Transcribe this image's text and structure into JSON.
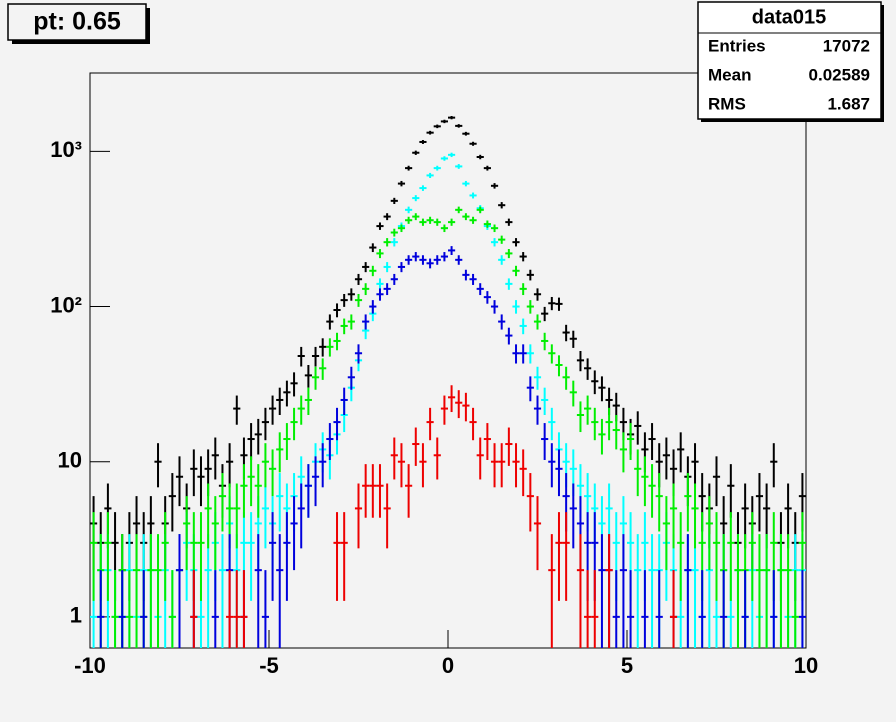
{
  "title_box": "pt: 0.65",
  "stats": {
    "title": "data015",
    "rows": [
      {
        "label": "Entries",
        "value": 17072
      },
      {
        "label": "Mean",
        "value": 0.02589
      },
      {
        "label": "RMS",
        "value": 1.687
      }
    ]
  },
  "chart_data": {
    "type": "errorbar",
    "log_y": true,
    "x": [
      -9.9,
      -9.7,
      -9.5,
      -9.3,
      -9.1,
      -8.9,
      -8.7,
      -8.5,
      -8.3,
      -8.1,
      -7.9,
      -7.7,
      -7.5,
      -7.3,
      -7.1,
      -6.9,
      -6.7,
      -6.5,
      -6.3,
      -6.1,
      -5.9,
      -5.7,
      -5.5,
      -5.3,
      -5.1,
      -4.9,
      -4.7,
      -4.5,
      -4.3,
      -4.1,
      -3.9,
      -3.7,
      -3.5,
      -3.3,
      -3.1,
      -2.9,
      -2.7,
      -2.5,
      -2.3,
      -2.1,
      -1.9,
      -1.7,
      -1.5,
      -1.3,
      -1.1,
      -0.9,
      -0.7,
      -0.5,
      -0.3,
      -0.1,
      0.1,
      0.3,
      0.5,
      0.7,
      0.9,
      1.1,
      1.3,
      1.5,
      1.7,
      1.9,
      2.1,
      2.3,
      2.5,
      2.7,
      2.9,
      3.1,
      3.3,
      3.5,
      3.7,
      3.9,
      4.1,
      4.3,
      4.5,
      4.7,
      4.9,
      5.1,
      5.3,
      5.5,
      5.7,
      5.9,
      6.1,
      6.3,
      6.5,
      6.7,
      6.9,
      7.1,
      7.3,
      7.5,
      7.7,
      7.9,
      8.1,
      8.3,
      8.5,
      8.7,
      8.9,
      9.1,
      9.3,
      9.5,
      9.7,
      9.9
    ],
    "xlim": [
      -10,
      10
    ],
    "xticks": [
      -10,
      -5,
      0,
      5,
      10
    ],
    "ylim": [
      0.63,
      3200
    ],
    "yticks": [
      1,
      10,
      {
        "value": 100,
        "label": "10²"
      },
      {
        "value": 1000,
        "label": "10³"
      }
    ],
    "series": [
      {
        "color": "#000000",
        "values": [
          4,
          3,
          5,
          3,
          2,
          3,
          4,
          3,
          4,
          10,
          4,
          6,
          8,
          5,
          9,
          8,
          9,
          11,
          7,
          10,
          22,
          11,
          14,
          15,
          18,
          22,
          25,
          28,
          32,
          48,
          36,
          48,
          55,
          80,
          95,
          110,
          120,
          150,
          180,
          240,
          330,
          380,
          480,
          620,
          780,
          980,
          1150,
          1320,
          1450,
          1560,
          1650,
          1460,
          1300,
          1120,
          920,
          780,
          600,
          450,
          350,
          260,
          210,
          160,
          120,
          90,
          105,
          104,
          68,
          62,
          45,
          40,
          33,
          30,
          25,
          23,
          18,
          15,
          17,
          12,
          14,
          10,
          11,
          9,
          12,
          8,
          10,
          6,
          5,
          8,
          4,
          7,
          3,
          5,
          4,
          6,
          5,
          10,
          3,
          5,
          3,
          6
        ]
      },
      {
        "color": "#00ffff",
        "values": [
          1,
          2,
          2,
          1,
          1,
          2,
          1,
          2,
          2,
          1,
          2,
          1,
          2,
          3,
          2,
          1,
          2,
          3,
          2,
          4,
          2,
          3,
          3,
          4,
          5,
          4,
          6,
          5,
          6,
          8,
          7,
          10,
          12,
          11,
          15,
          20,
          30,
          45,
          70,
          90,
          140,
          180,
          260,
          330,
          420,
          500,
          580,
          700,
          780,
          900,
          950,
          800,
          620,
          520,
          430,
          330,
          260,
          200,
          140,
          100,
          75,
          50,
          35,
          25,
          18,
          12,
          10,
          9,
          7,
          6,
          5,
          4,
          5,
          3,
          4,
          3,
          2,
          3,
          2,
          2,
          3,
          2,
          1,
          2,
          2,
          1,
          2,
          1,
          2,
          1,
          2,
          1,
          2,
          1,
          2,
          1,
          2,
          1,
          2,
          2
        ]
      },
      {
        "color": "#00ee00",
        "values": [
          3,
          2,
          3,
          1,
          2,
          1,
          2,
          1,
          2,
          2,
          3,
          1,
          2,
          4,
          3,
          3,
          5,
          4,
          6,
          5,
          5,
          7,
          8,
          7,
          10,
          9,
          12,
          14,
          18,
          22,
          25,
          35,
          40,
          55,
          60,
          75,
          80,
          110,
          130,
          170,
          220,
          260,
          300,
          320,
          360,
          380,
          350,
          360,
          350,
          320,
          350,
          420,
          380,
          360,
          420,
          340,
          320,
          270,
          220,
          170,
          130,
          100,
          80,
          60,
          50,
          42,
          35,
          28,
          20,
          22,
          18,
          15,
          18,
          16,
          12,
          14,
          9,
          8,
          7,
          6,
          4,
          5,
          3,
          6,
          5,
          3,
          4,
          3,
          2,
          3,
          2,
          2,
          3,
          2,
          2,
          3,
          2,
          2,
          1,
          3
        ]
      },
      {
        "color": "#0000dd",
        "values": [
          null,
          1,
          null,
          null,
          1,
          null,
          null,
          1,
          null,
          null,
          null,
          null,
          2,
          null,
          1,
          null,
          null,
          1,
          null,
          2,
          null,
          1,
          null,
          2,
          1,
          3,
          2,
          3,
          4,
          5,
          7,
          8,
          10,
          14,
          18,
          25,
          35,
          50,
          80,
          100,
          120,
          130,
          150,
          180,
          200,
          210,
          200,
          190,
          200,
          210,
          230,
          200,
          160,
          150,
          130,
          115,
          100,
          80,
          65,
          50,
          50,
          30,
          22,
          14,
          10,
          9,
          6,
          5,
          4,
          3,
          3,
          2,
          2,
          1,
          2,
          1,
          null,
          1,
          null,
          1,
          null,
          1,
          null,
          2,
          null,
          1,
          null,
          null,
          1,
          null,
          null,
          1,
          null,
          null,
          null,
          1,
          null,
          null,
          null,
          1
        ]
      },
      {
        "color": "#ee0000",
        "values": [
          null,
          null,
          null,
          null,
          null,
          null,
          null,
          null,
          null,
          null,
          null,
          null,
          null,
          null,
          1,
          null,
          null,
          null,
          null,
          1,
          1,
          1,
          null,
          null,
          null,
          null,
          null,
          null,
          null,
          null,
          null,
          null,
          null,
          null,
          3,
          3,
          null,
          5,
          7,
          7,
          7,
          5,
          11,
          10,
          7,
          13,
          10,
          18,
          11,
          22,
          26,
          24,
          23,
          18,
          11,
          14,
          10,
          10,
          13,
          10,
          9,
          6,
          4,
          null,
          2,
          3,
          3,
          null,
          2,
          1,
          1,
          null,
          2,
          null,
          null,
          null,
          null,
          null,
          null,
          null,
          null,
          1,
          null,
          null,
          null,
          null,
          null,
          null,
          null,
          null,
          null,
          null,
          null,
          null,
          null,
          null,
          null,
          null,
          null,
          null
        ]
      }
    ]
  }
}
